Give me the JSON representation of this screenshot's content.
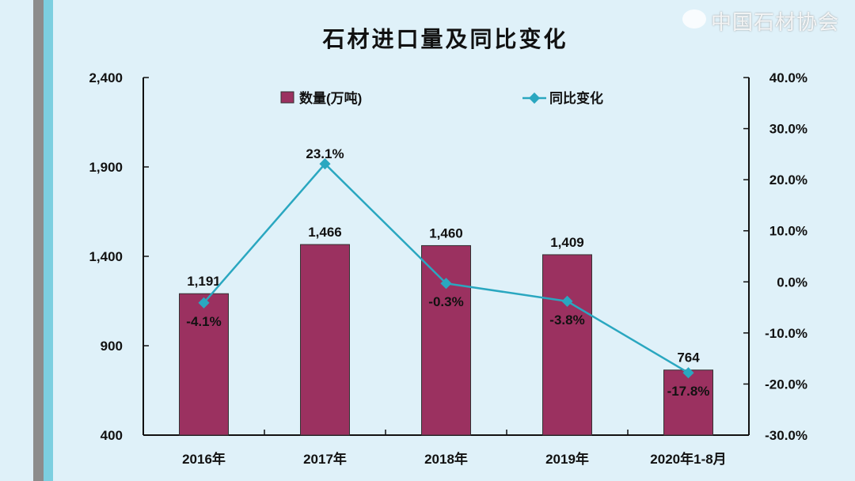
{
  "colors": {
    "bar": "#9b3160",
    "line": "#2aa7c0",
    "background": "#dff1f9"
  },
  "watermark": "中国石材协会",
  "chart_data": {
    "type": "bar+line",
    "title": "石材进口量及同比变化",
    "categories": [
      "2016年",
      "2017年",
      "2018年",
      "2019年",
      "2020年1-8月"
    ],
    "series": [
      {
        "name": "数量(万吨)",
        "type": "bar",
        "axis": "left",
        "values": [
          1191,
          1466,
          1460,
          1409,
          764
        ],
        "labels": [
          "1,191",
          "1,466",
          "1,460",
          "1,409",
          "764"
        ]
      },
      {
        "name": "同比变化",
        "type": "line",
        "axis": "right",
        "values": [
          -4.1,
          23.1,
          -0.3,
          -3.8,
          -17.8
        ],
        "labels": [
          "-4.1%",
          "23.1%",
          "-0.3%",
          "-3.8%",
          "-17.8%"
        ]
      }
    ],
    "left_axis": {
      "ylim": [
        400,
        2400
      ],
      "ticks": [
        "2,400",
        "1,900",
        "1,400",
        "900",
        "400"
      ]
    },
    "right_axis": {
      "ylim": [
        -30,
        40
      ],
      "ticks": [
        "40.0%",
        "30.0%",
        "20.0%",
        "10.0%",
        "0.0%",
        "-10.0%",
        "-20.0%",
        "-30.0%"
      ]
    },
    "legend": "top",
    "grid": false
  }
}
